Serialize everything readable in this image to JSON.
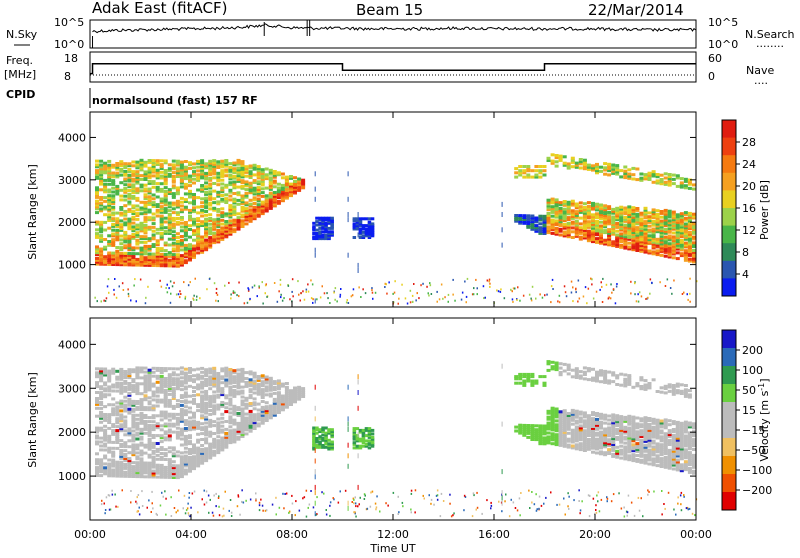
{
  "header": {
    "station": "Adak East (fitACF)",
    "beam": "Beam 15",
    "date": "22/Mar/2014"
  },
  "panel_labels": {
    "nsky": "N.Sky",
    "nsearch": "N.Search",
    "nsearch_line": "........",
    "freq": "Freq.",
    "mhz": "[MHz]",
    "nave": "Nave",
    "nave_line": "....",
    "cpid": "CPID",
    "program": "normalsound (fast) 157 RF"
  },
  "colors": {
    "power_scale": [
      "#0a1cf0",
      "#2a56b0",
      "#2e8a58",
      "#48b548",
      "#9cd24a",
      "#e8d020",
      "#f5a020",
      "#f57a10",
      "#ee4010",
      "#e01c10"
    ],
    "velocity_scale": [
      "#e00000",
      "#f05000",
      "#f09000",
      "#f0c060",
      "#bcbcbc",
      "#bcbcbc",
      "#6ad040",
      "#2f9a50",
      "#2a6ab8",
      "#1818c8"
    ]
  },
  "chart_data": [
    {
      "type": "line",
      "name": "noise",
      "left_labels": [
        "10^5",
        "10^0"
      ],
      "right_labels": [
        "10^5",
        "10^0"
      ],
      "series": [
        {
          "name": "N.Sky",
          "values": [
            3.0,
            3.2,
            3.3,
            3.4,
            3.5,
            3.6,
            3.8,
            4.2,
            3.7,
            3.6,
            3.6,
            3.5,
            3.5,
            3.5,
            3.6,
            3.6,
            3.5,
            3.5,
            3.5,
            3.5,
            3.5,
            3.4,
            3.3,
            3.3,
            3.3
          ]
        }
      ],
      "x": [
        0,
        1,
        2,
        3,
        4,
        5,
        6,
        7,
        8,
        9,
        10,
        11,
        12,
        13,
        14,
        15,
        16,
        17,
        18,
        19,
        20,
        21,
        22,
        23,
        24
      ]
    },
    {
      "type": "line",
      "name": "frequency",
      "left_ticks": [
        "18",
        "8"
      ],
      "right_ticks": [
        "60",
        "0"
      ],
      "series": [
        {
          "name": "Freq.",
          "x": [
            0,
            0.1,
            0.1,
            10,
            10,
            18,
            18,
            24
          ],
          "values": [
            11,
            11,
            14.5,
            14.5,
            12.2,
            12.2,
            14.5,
            14.5
          ]
        },
        {
          "name": "Nave",
          "x": [
            0,
            24
          ],
          "values": [
            10.5,
            10.5
          ]
        }
      ]
    },
    {
      "type": "heatmap",
      "name": "power",
      "ylabel": "Slant Range [km]",
      "yticks": [
        "1000",
        "2000",
        "3000",
        "4000"
      ],
      "colorbar_label": "Power [dB]",
      "colorbar_ticks": [
        "4",
        "8",
        "12",
        "16",
        "20",
        "24",
        "28"
      ]
    },
    {
      "type": "heatmap",
      "name": "velocity",
      "ylabel": "Slant Range [km]",
      "yticks": [
        "1000",
        "2000",
        "3000",
        "4000"
      ],
      "xlabel": "Time UT",
      "xticks": [
        "00:00",
        "04:00",
        "08:00",
        "12:00",
        "16:00",
        "20:00",
        "00:00"
      ],
      "colorbar_label": "Velocity [m s",
      "colorbar_label_exp": "-1",
      "colorbar_label_end": "]",
      "colorbar_ticks": [
        "200",
        "100",
        "50",
        "15",
        "−15",
        "−50",
        "−100",
        "−200"
      ]
    }
  ]
}
